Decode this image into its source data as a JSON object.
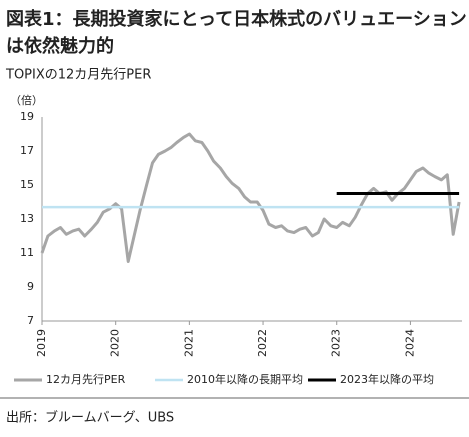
{
  "chart_data": {
    "type": "line",
    "title": "図表1：長期投資家にとって日本株式のバリュエーション",
    "title_line2": "は依然魅力的",
    "subtitle": "TOPIXの12カ月先行PER",
    "y_unit": "（倍）",
    "source": "出所：ブルームバーグ、UBS",
    "xlim": [
      2019,
      2024.7
    ],
    "xticks": [
      2019,
      2020,
      2021,
      2022,
      2023,
      2024
    ],
    "ylim": [
      7,
      19
    ],
    "yticks": [
      7,
      9,
      11,
      13,
      15,
      17,
      19
    ],
    "grid": false,
    "legend": "bottom",
    "series": [
      {
        "name": "12カ月先行PER",
        "color": "#a6a6a6",
        "width": 3,
        "x": [
          2019.0,
          2019.08,
          2019.17,
          2019.25,
          2019.33,
          2019.42,
          2019.5,
          2019.58,
          2019.67,
          2019.75,
          2019.83,
          2019.92,
          2020.0,
          2020.08,
          2020.17,
          2020.25,
          2020.33,
          2020.42,
          2020.5,
          2020.58,
          2020.67,
          2020.75,
          2020.83,
          2020.92,
          2021.0,
          2021.08,
          2021.17,
          2021.25,
          2021.33,
          2021.42,
          2021.5,
          2021.58,
          2021.67,
          2021.75,
          2021.83,
          2021.92,
          2022.0,
          2022.08,
          2022.17,
          2022.25,
          2022.33,
          2022.42,
          2022.5,
          2022.58,
          2022.67,
          2022.75,
          2022.83,
          2022.92,
          2023.0,
          2023.08,
          2023.17,
          2023.25,
          2023.33,
          2023.42,
          2023.5,
          2023.58,
          2023.67,
          2023.75,
          2023.83,
          2023.92,
          2024.0,
          2024.08,
          2024.17,
          2024.25,
          2024.33,
          2024.42,
          2024.5,
          2024.58,
          2024.66
        ],
        "values": [
          11.0,
          12.0,
          12.3,
          12.5,
          12.1,
          12.3,
          12.4,
          12.0,
          12.4,
          12.8,
          13.4,
          13.6,
          13.9,
          13.6,
          10.5,
          12.0,
          13.5,
          15.0,
          16.3,
          16.8,
          17.0,
          17.2,
          17.5,
          17.8,
          18.0,
          17.6,
          17.5,
          17.0,
          16.4,
          16.0,
          15.5,
          15.1,
          14.8,
          14.3,
          14.0,
          14.0,
          13.5,
          12.7,
          12.5,
          12.6,
          12.3,
          12.2,
          12.4,
          12.5,
          12.0,
          12.2,
          13.0,
          12.6,
          12.5,
          12.8,
          12.6,
          13.1,
          13.8,
          14.5,
          14.8,
          14.5,
          14.6,
          14.1,
          14.5,
          14.8,
          15.3,
          15.8,
          16.0,
          15.7,
          15.5,
          15.3,
          15.6,
          12.1,
          14.0
        ]
      },
      {
        "name": "2010年以降の長期平均",
        "color": "#bfe3f2",
        "width": 2.5,
        "x": [
          2019.0,
          2024.66
        ],
        "values": [
          13.7,
          13.7
        ]
      },
      {
        "name": "2023年以降の平均",
        "color": "#000000",
        "width": 3,
        "x": [
          2023.0,
          2024.66
        ],
        "values": [
          14.5,
          14.5
        ]
      }
    ]
  }
}
